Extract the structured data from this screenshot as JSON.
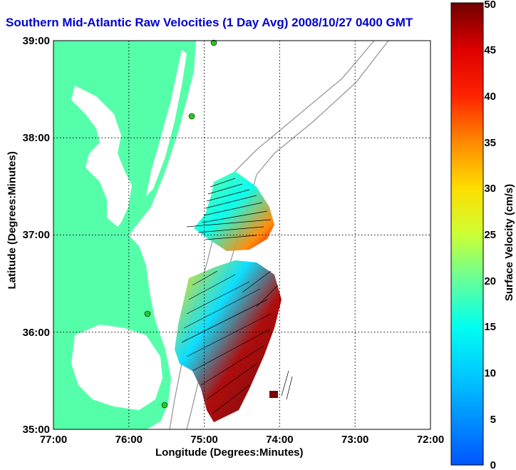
{
  "title": "Southern Mid-Atlantic Raw Velocities (1 Day Avg) 2008/10/27 0400 GMT",
  "xlabel": "Longitude (Degrees:Minutes)",
  "ylabel": "Latitude (Degrees:Minutes)",
  "colorbar_label": "Surface Velocity (cm/s)",
  "x_ticks": [
    "77:00",
    "76:00",
    "75:00",
    "74:00",
    "73:00",
    "72:00"
  ],
  "y_ticks": [
    "39:00",
    "38:00",
    "37:00",
    "36:00",
    "35:00"
  ],
  "colorbar_ticks": [
    "0",
    "5",
    "10",
    "15",
    "20",
    "25",
    "30",
    "35",
    "40",
    "45",
    "50"
  ],
  "colors": {
    "land": "#55ffaa",
    "water": "#ffffff",
    "bathymetry": "#999999",
    "title": "#0000d0",
    "station": "#22cc22"
  },
  "chart_data": {
    "type": "heatmap",
    "title": "Southern Mid-Atlantic Raw Velocities (1 Day Avg) 2008/10/27 0400 GMT",
    "xlabel": "Longitude (Degrees:Minutes)",
    "ylabel": "Latitude (Degrees:Minutes)",
    "xlim": [
      -77,
      -72
    ],
    "ylim": [
      35,
      39
    ],
    "grid": true,
    "colorbar": {
      "label": "Surface Velocity (cm/s)",
      "range": [
        0,
        50
      ]
    }
  }
}
